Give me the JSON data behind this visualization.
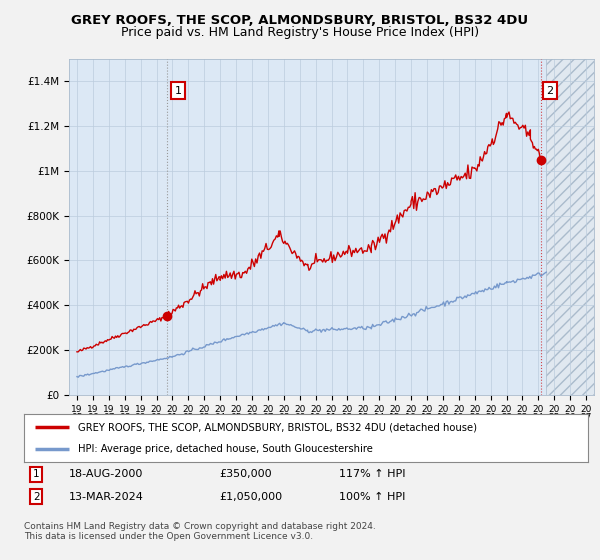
{
  "title": "GREY ROOFS, THE SCOP, ALMONDSBURY, BRISTOL, BS32 4DU",
  "subtitle": "Price paid vs. HM Land Registry's House Price Index (HPI)",
  "title_fontsize": 9.5,
  "subtitle_fontsize": 9.0,
  "red_color": "#cc0000",
  "blue_color": "#7799cc",
  "annotation_box_color": "#cc0000",
  "background_color": "#f2f2f2",
  "plot_bg_color": "#dce8f5",
  "ylim": [
    0,
    1500000
  ],
  "yticks": [
    0,
    200000,
    400000,
    600000,
    800000,
    1000000,
    1200000,
    1400000
  ],
  "ytick_labels": [
    "£0",
    "£200K",
    "£400K",
    "£600K",
    "£800K",
    "£1M",
    "£1.2M",
    "£1.4M"
  ],
  "xlim_start": 1994.5,
  "xlim_end": 2027.5,
  "legend_label_red": "GREY ROOFS, THE SCOP, ALMONDSBURY, BRISTOL, BS32 4DU (detached house)",
  "legend_label_blue": "HPI: Average price, detached house, South Gloucestershire",
  "point1_x": 2000.63,
  "point1_y": 350000,
  "point1_label": "1",
  "point2_x": 2024.19,
  "point2_y": 1050000,
  "point2_label": "2",
  "footer_text": "Contains HM Land Registry data © Crown copyright and database right 2024.\nThis data is licensed under the Open Government Licence v3.0.",
  "hatch_start": 2024.5
}
